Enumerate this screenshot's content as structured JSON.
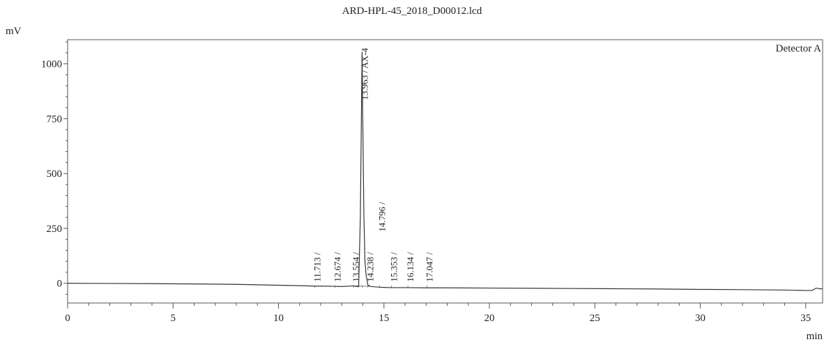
{
  "chart_data": {
    "type": "line",
    "title": "ARD-HPL-45_2018_D00012.lcd",
    "ylabel": "mV",
    "xlabel": "min",
    "legend": "Detector A",
    "xlim": [
      0,
      35.8
    ],
    "ylim": [
      -90,
      1110
    ],
    "xticks": [
      0,
      5,
      10,
      15,
      20,
      25,
      30,
      35
    ],
    "yticks": [
      0,
      250,
      500,
      750,
      1000
    ],
    "grid": false,
    "series": [
      {
        "name": "Detector A",
        "x": [
          0,
          2,
          4,
          6,
          8,
          9,
          10,
          11,
          11.7,
          12,
          12.674,
          13,
          13.554,
          13.8,
          13.88,
          13.963,
          14.0,
          14.05,
          14.1,
          14.15,
          14.238,
          14.35,
          14.5,
          14.796,
          15.0,
          15.353,
          16.0,
          16.134,
          17.047,
          18,
          20,
          22,
          24,
          26,
          28,
          30,
          32,
          34,
          35,
          35.3,
          35.5,
          35.7,
          35.8
        ],
        "y": [
          0,
          -1,
          -2,
          -3,
          -5,
          -7,
          -9,
          -11,
          -13,
          -13,
          -14,
          -15,
          -12,
          -16,
          300,
          1055,
          700,
          300,
          100,
          40,
          -8,
          -14,
          -16,
          -18,
          -19,
          -20,
          -20,
          -20,
          -21,
          -21,
          -22,
          -23,
          -24,
          -25,
          -26,
          -28,
          -29,
          -31,
          -33,
          -33,
          -22,
          -26,
          -24
        ]
      }
    ],
    "peaks": [
      {
        "x": 11.713,
        "label": "11.713 /"
      },
      {
        "x": 12.674,
        "label": "12.674 /"
      },
      {
        "x": 13.554,
        "label": "13.554 /"
      },
      {
        "x": 13.963,
        "label": "13.963 / AX-4"
      },
      {
        "x": 14.238,
        "label": "14.238 /"
      },
      {
        "x": 14.796,
        "label": "14.796 /"
      },
      {
        "x": 15.353,
        "label": "15.353 /"
      },
      {
        "x": 16.134,
        "label": "16.134 /"
      },
      {
        "x": 17.047,
        "label": "17.047 /"
      }
    ]
  }
}
